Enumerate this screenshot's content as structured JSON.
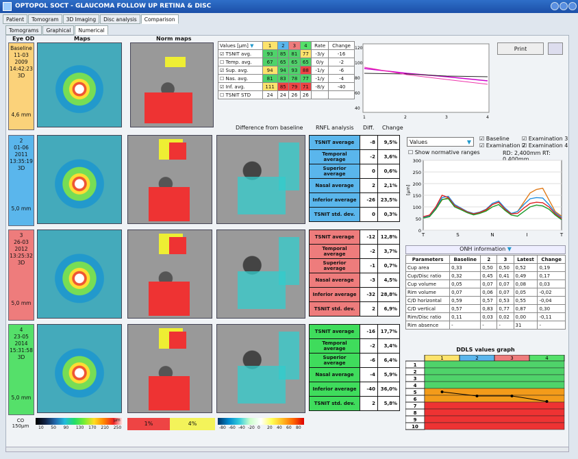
{
  "window": {
    "title": "OPTOPOL SOCT - GLAUCOMA FOLLOW UP RETINA & DISC"
  },
  "tabs": [
    "Patient",
    "Tomogram",
    "3D Imaging",
    "Disc analysis",
    "Comparison"
  ],
  "subtabs": [
    "Tomograms",
    "Graphical",
    "Numerical"
  ],
  "headers": {
    "eye": "Eye OD",
    "maps": "Maps",
    "norm": "Norm maps"
  },
  "baseline": {
    "label": "Baseline",
    "day": "11-03",
    "year": "2009",
    "time": "14:42:23",
    "mode": "3D",
    "size": "4,6 mm"
  },
  "exams": [
    {
      "n": "2",
      "day": "01-06",
      "year": "2011",
      "time": "13:35:19",
      "mode": "3D",
      "size": "5,0 mm",
      "color": "#5ab6ec",
      "rowcolor": "#5ab6ec",
      "rows": [
        [
          "TSNIT average",
          "-8",
          "9,5%"
        ],
        [
          "Temporal average",
          "-2",
          "3,6%"
        ],
        [
          "Superior average",
          "0",
          "0,6%"
        ],
        [
          "Nasal average",
          "2",
          "2,1%"
        ],
        [
          "Inferior average",
          "-26",
          "23,5%"
        ],
        [
          "TSNIT std. dev.",
          "0",
          "0,3%"
        ]
      ]
    },
    {
      "n": "3",
      "day": "26-03",
      "year": "2012",
      "time": "13:25:32",
      "mode": "3D",
      "size": "5,0 mm",
      "color": "#ee7c7c",
      "rowcolor": "#ee7c7c",
      "rows": [
        [
          "TSNIT average",
          "-12",
          "12,8%"
        ],
        [
          "Temporal average",
          "-2",
          "3,7%"
        ],
        [
          "Superior average",
          "-1",
          "0,7%"
        ],
        [
          "Nasal average",
          "-3",
          "4,5%"
        ],
        [
          "Inferior average",
          "-32",
          "28,8%"
        ],
        [
          "TSNIT std. dev.",
          "2",
          "6,9%"
        ]
      ]
    },
    {
      "n": "4",
      "day": "23-05",
      "year": "2014",
      "time": "15:31:58",
      "mode": "3D",
      "size": "5,0 mm",
      "color": "#55e06a",
      "rowcolor": "#3fdc5c",
      "rows": [
        [
          "TSNIT average",
          "-16",
          "17,7%"
        ],
        [
          "Temporal average",
          "-2",
          "3,4%"
        ],
        [
          "Superior average",
          "-6",
          "6,4%"
        ],
        [
          "Nasal average",
          "-4",
          "5,9%"
        ],
        [
          "Inferior average",
          "-40",
          "36,0%"
        ],
        [
          "TSNIT std. dev.",
          "2",
          "5,8%"
        ]
      ]
    }
  ],
  "values_table": {
    "dropdown": "Values [µm]",
    "cols": [
      "1",
      "2",
      "3",
      "4",
      "Rate",
      "Change"
    ],
    "rows": [
      {
        "label": "TSNIT avg.",
        "vals": [
          "93",
          "85",
          "81",
          "77"
        ],
        "rate": "-3/y",
        "change": "-16",
        "checked": true
      },
      {
        "label": "Temp. avg.",
        "vals": [
          "67",
          "65",
          "65",
          "65"
        ],
        "rate": "0/y",
        "change": "-2",
        "checked": false
      },
      {
        "label": "Sup. avg.",
        "vals": [
          "94",
          "94",
          "93",
          "88"
        ],
        "rate": "-1/y",
        "change": "-6",
        "checked": true
      },
      {
        "label": "Nas. avg.",
        "vals": [
          "81",
          "83",
          "78",
          "77"
        ],
        "rate": "-1/y",
        "change": "-4",
        "checked": false
      },
      {
        "label": "Inf. avg.",
        "vals": [
          "111",
          "85",
          "79",
          "71"
        ],
        "rate": "-8/y",
        "change": "-40",
        "checked": true
      },
      {
        "label": "TSNIT STD",
        "vals": [
          "24",
          "24",
          "26",
          "26"
        ],
        "rate": "",
        "change": "",
        "checked": false
      }
    ]
  },
  "footer_labels": {
    "diff": "Difference from baseline",
    "rnfl": "RNFL analysis",
    "diffcol": "Diff.",
    "change": "Change"
  },
  "trend_chart": {
    "yticks": [
      "120",
      "100",
      "80",
      "60",
      "40"
    ],
    "xticks": [
      "1",
      "2",
      "3",
      "4"
    ]
  },
  "print": {
    "label": "Print"
  },
  "tsnit_controls": {
    "dropdown": "Values",
    "normative": "Show normative ranges",
    "legend": [
      "Baseline",
      "Examination 2",
      "Examination 3",
      "Examination 4"
    ],
    "rd": "RD: 2,400mm RT: 0,400mm"
  },
  "chart_data": {
    "type": "line",
    "ylabel": "[µm]",
    "ylim": [
      0,
      300
    ],
    "yticks": [
      "300",
      "250",
      "200",
      "150",
      "100",
      "50",
      "0"
    ],
    "xticks": [
      "T",
      "S",
      "N",
      "I",
      "T"
    ],
    "series": [
      {
        "name": "Baseline",
        "color": "#e07a18",
        "values": [
          55,
          60,
          90,
          130,
          140,
          110,
          95,
          80,
          70,
          75,
          85,
          110,
          120,
          90,
          70,
          80,
          120,
          160,
          175,
          180,
          130,
          80,
          60
        ]
      },
      {
        "name": "Examination 2",
        "color": "#1f8fe0",
        "values": [
          55,
          62,
          95,
          140,
          145,
          110,
          95,
          80,
          72,
          78,
          90,
          115,
          125,
          95,
          72,
          80,
          110,
          135,
          140,
          138,
          110,
          75,
          55
        ]
      },
      {
        "name": "Examination 3",
        "color": "#d22",
        "values": [
          58,
          65,
          100,
          150,
          140,
          105,
          92,
          78,
          70,
          76,
          88,
          110,
          120,
          90,
          70,
          72,
          95,
          115,
          120,
          118,
          100,
          70,
          50
        ]
      },
      {
        "name": "Examination 4",
        "color": "#1a9a2a",
        "values": [
          52,
          58,
          90,
          132,
          135,
          100,
          88,
          75,
          66,
          72,
          82,
          100,
          110,
          85,
          65,
          60,
          80,
          100,
          108,
          104,
          90,
          65,
          45
        ]
      }
    ]
  },
  "onh": {
    "title": "ONH information",
    "cols": [
      "Parameters",
      "Baseline",
      "2",
      "3",
      "Latest",
      "Change"
    ],
    "rows": [
      [
        "Cup area",
        "0,33",
        "0,50",
        "0,50",
        "0,52",
        "0,19"
      ],
      [
        "Cup/Disc ratio",
        "0,32",
        "0,45",
        "0,41",
        "0,49",
        "0,17"
      ],
      [
        "Cup volume",
        "0,05",
        "0,07",
        "0,07",
        "0,08",
        "0,03"
      ],
      [
        "Rim volume",
        "0,07",
        "0,06",
        "0,07",
        "0,05",
        "-0,02"
      ],
      [
        "C/D horizontal",
        "0,59",
        "0,57",
        "0,53",
        "0,55",
        "-0,04"
      ],
      [
        "C/D vertical",
        "0,57",
        "0,83",
        "0,77",
        "0,87",
        "0,30"
      ],
      [
        "Rim/Disc ratio",
        "0,11",
        "0,03",
        "0,02",
        "0,00",
        "-0,11"
      ],
      [
        "Rim absence",
        "-",
        "-",
        "-",
        "31",
        "-"
      ]
    ]
  },
  "ddls": {
    "title": "DDLS values graph",
    "cols": [
      "1",
      "2",
      "3",
      "4"
    ],
    "rows": [
      "1",
      "2",
      "3",
      "4",
      "5",
      "6",
      "7",
      "8",
      "9",
      "10"
    ]
  },
  "legend": {
    "co": "CO\n150µm",
    "scale": [
      "10",
      "50",
      "90",
      "130",
      "170",
      "210",
      "250"
    ],
    "um": "µm",
    "p1": "1%",
    "p4": "4%",
    "diffscale": [
      "-80",
      "-60",
      "-40",
      "-20",
      "0",
      "20",
      "40",
      "60",
      "80"
    ]
  }
}
